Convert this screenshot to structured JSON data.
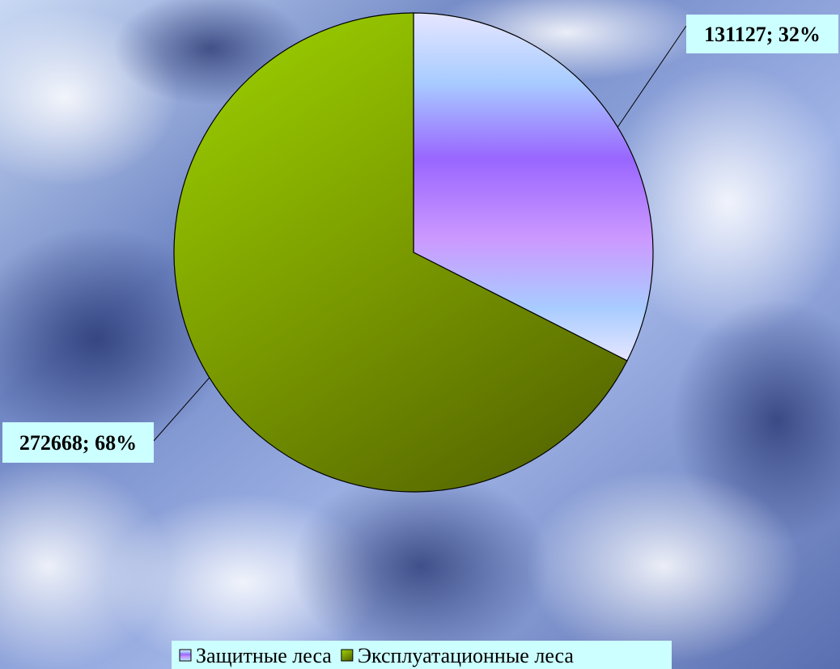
{
  "chart_data": {
    "type": "pie",
    "categories": [
      "Защитные леса",
      "Эксплуатационные леса"
    ],
    "values": [
      131127,
      272668
    ],
    "value_labels": [
      "131127; 32%",
      "272668; 68%"
    ],
    "colors": [
      "#a98cff",
      "#7f9a00"
    ],
    "legend": "bottom"
  }
}
